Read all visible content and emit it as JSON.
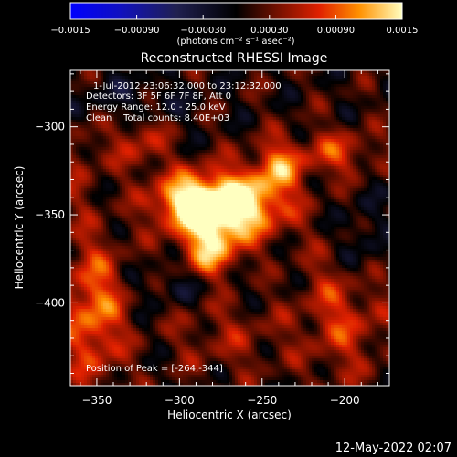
{
  "chart_data": {
    "type": "heatmap",
    "title": "Reconstructed RHESSI Image",
    "xlabel": "Heliocentric X (arcsec)",
    "ylabel": "Heliocentric Y (arcsec)",
    "xlim": [
      -366,
      -173
    ],
    "ylim": [
      -447,
      -268
    ],
    "x_ticks": [
      -350,
      -300,
      -250,
      -200
    ],
    "y_ticks": [
      -300,
      -350,
      -400
    ],
    "x_tick_labels": [
      "−350",
      "−300",
      "−250",
      "−200"
    ],
    "y_tick_labels": [
      "−300",
      "−350",
      "−400"
    ],
    "colorbar": {
      "range": [
        -0.0015,
        0.0015
      ],
      "ticks": [
        -0.0015,
        -0.0009,
        -0.0003,
        0.0003,
        0.0009,
        0.0015
      ],
      "tick_labels": [
        "−0.0015",
        "−0.00090",
        "−0.00030",
        "0.00030",
        "0.00090",
        "0.0015"
      ],
      "unit_label": "(photons cm⁻² s⁻¹ asec⁻²)"
    },
    "annotations": [
      "1-Jul-2012 23:06:32.000 to 23:12:32.000",
      "Detectors: 3F 5F 6F 7F 8F, Att 0",
      "Energy Range: 12.0 - 25.0 keV",
      "Clean    Total counts: 8.40E+03"
    ],
    "peak_label": "Position of Peak = [-264,-344]",
    "peak": [
      -264,
      -344
    ],
    "sources": [
      {
        "x": -264,
        "y": -344,
        "amp": 0.0015,
        "sx": 20,
        "sy": 13
      },
      {
        "x": -296,
        "y": -343,
        "amp": 0.0012,
        "sx": 15,
        "sy": 11
      },
      {
        "x": -281,
        "y": -369,
        "amp": 0.00105,
        "sx": 12,
        "sy": 16
      },
      {
        "x": -240,
        "y": -322,
        "amp": 0.0008,
        "sx": 10,
        "sy": 10
      },
      {
        "x": -352,
        "y": -405,
        "amp": 0.0009,
        "sx": 13,
        "sy": 28
      },
      {
        "x": -325,
        "y": -308,
        "amp": 0.0005,
        "sx": 12,
        "sy": 12
      },
      {
        "x": -205,
        "y": -315,
        "amp": 0.0006,
        "sx": 16,
        "sy": 9
      },
      {
        "x": -200,
        "y": -405,
        "amp": 0.0006,
        "sx": 18,
        "sy": 25
      },
      {
        "x": -270,
        "y": -420,
        "amp": 0.0003,
        "sx": 25,
        "sy": 15
      },
      {
        "x": -360,
        "y": -320,
        "amp": 0.0003,
        "sx": 8,
        "sy": 20
      },
      {
        "x": -290,
        "y": -390,
        "amp": -0.0004,
        "sx": 20,
        "sy": 8
      },
      {
        "x": -330,
        "y": -285,
        "amp": -0.0003,
        "sx": 25,
        "sy": 10
      },
      {
        "x": -190,
        "y": -370,
        "amp": -0.0004,
        "sx": 10,
        "sy": 20
      }
    ]
  },
  "footer": {
    "timestamp": "12-May-2022 02:07"
  }
}
